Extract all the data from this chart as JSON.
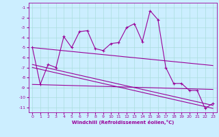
{
  "xlabel": "Windchill (Refroidissement éolien,°C)",
  "line_color": "#990099",
  "bg_color": "#cceeff",
  "grid_color": "#aadddd",
  "xlim": [
    -0.5,
    23.5
  ],
  "ylim": [
    -11.5,
    -0.5
  ],
  "xticks": [
    0,
    1,
    2,
    3,
    4,
    5,
    6,
    7,
    8,
    9,
    10,
    11,
    12,
    13,
    14,
    15,
    16,
    17,
    18,
    19,
    20,
    21,
    22,
    23
  ],
  "yticks": [
    -1,
    -2,
    -3,
    -4,
    -5,
    -6,
    -7,
    -8,
    -9,
    -10,
    -11
  ],
  "main_line": {
    "x": [
      0,
      1,
      2,
      3,
      4,
      5,
      6,
      7,
      8,
      9,
      10,
      11,
      12,
      13,
      14,
      15,
      16,
      17,
      18,
      19,
      20,
      21,
      22,
      23
    ],
    "y": [
      -5.0,
      -8.7,
      -6.7,
      -7.0,
      -3.9,
      -5.0,
      -3.4,
      -3.3,
      -5.1,
      -5.3,
      -4.6,
      -4.5,
      -3.0,
      -2.6,
      -4.4,
      -1.3,
      -2.2,
      -7.0,
      -8.6,
      -8.6,
      -9.3,
      -9.3,
      -11.1,
      -10.6
    ]
  },
  "extra_lines": [
    {
      "x": [
        0,
        23
      ],
      "y": [
        -5.0,
        -6.8
      ]
    },
    {
      "x": [
        0,
        23
      ],
      "y": [
        -7.0,
        -11.1
      ]
    },
    {
      "x": [
        0,
        23
      ],
      "y": [
        -6.7,
        -10.8
      ]
    },
    {
      "x": [
        0,
        23
      ],
      "y": [
        -8.7,
        -9.2
      ]
    }
  ]
}
